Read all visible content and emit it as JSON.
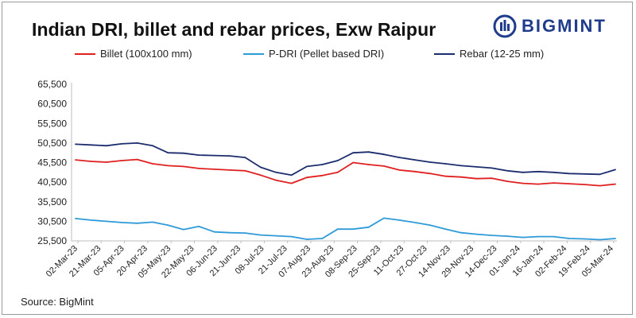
{
  "title": "Indian DRI, billet and rebar prices, Exw Raipur",
  "brand": {
    "name": "BIGMINT",
    "icon": "bigmint-logo-icon",
    "color": "#1f3b8c"
  },
  "source": "Source: BigMint",
  "chart_data": {
    "type": "line",
    "title": "Indian DRI, billet and rebar prices, Exw Raipur",
    "xlabel": "",
    "ylabel": "",
    "ylim": [
      25500,
      65500
    ],
    "yticks": [
      "65,500",
      "60,500",
      "55,500",
      "50,500",
      "45,500",
      "40,500",
      "35,500",
      "30,500",
      "25,500"
    ],
    "ytick_values": [
      65500,
      60500,
      55500,
      50500,
      45500,
      40500,
      35500,
      30500,
      25500
    ],
    "x_labels": [
      "02-Mar-23",
      "21-Mar-23",
      "05-Apr-23",
      "20-Apr-23",
      "05-May-23",
      "22-May-23",
      "06-Jun-23",
      "21-Jun-23",
      "08-Jul-23",
      "21-Jul-23",
      "07-Aug-23",
      "23-Aug-23",
      "08-Sep-23",
      "25-Sep-23",
      "11-Oct-23",
      "27-Oct-23",
      "14-Nov-23",
      "29-Nov-23",
      "14-Dec-23",
      "01-Jan-24",
      "16-Jan-24",
      "02-Feb-24",
      "19-Feb-24",
      "05-Mar-24"
    ],
    "grid": false,
    "legend_position": "top",
    "series": [
      {
        "name": "Billet (100x100 mm)",
        "color": "#e02020",
        "values": [
          46200,
          45800,
          45600,
          46000,
          46300,
          45200,
          44700,
          44500,
          44000,
          43800,
          43600,
          43400,
          42300,
          41000,
          40200,
          41700,
          42200,
          43000,
          45500,
          45000,
          44600,
          43600,
          43200,
          42700,
          42000,
          41800,
          41400,
          41500,
          40700,
          40200,
          40000,
          40300,
          40100,
          39900,
          39600,
          40000
        ]
      },
      {
        "name": "P-DRI (Pellet based DRI)",
        "color": "#2f9ad8",
        "values": [
          31200,
          30800,
          30500,
          30200,
          30000,
          30300,
          29500,
          28400,
          29200,
          27800,
          27600,
          27500,
          27000,
          26800,
          26600,
          25900,
          26100,
          28500,
          28500,
          29000,
          31300,
          30800,
          30200,
          29500,
          28500,
          27600,
          27200,
          26900,
          26700,
          26400,
          26600,
          26600,
          26100,
          26000,
          25800,
          26100
        ]
      },
      {
        "name": "Rebar (12-25 mm)",
        "color": "#1c2d6e",
        "values": [
          50200,
          50000,
          49800,
          50300,
          50500,
          49800,
          48000,
          47900,
          47400,
          47300,
          47200,
          46800,
          44300,
          43000,
          42300,
          44500,
          45000,
          46000,
          48000,
          48200,
          47600,
          46800,
          46200,
          45600,
          45200,
          44700,
          44400,
          44100,
          43400,
          43000,
          43200,
          43000,
          42700,
          42600,
          42500,
          43700
        ]
      }
    ]
  }
}
